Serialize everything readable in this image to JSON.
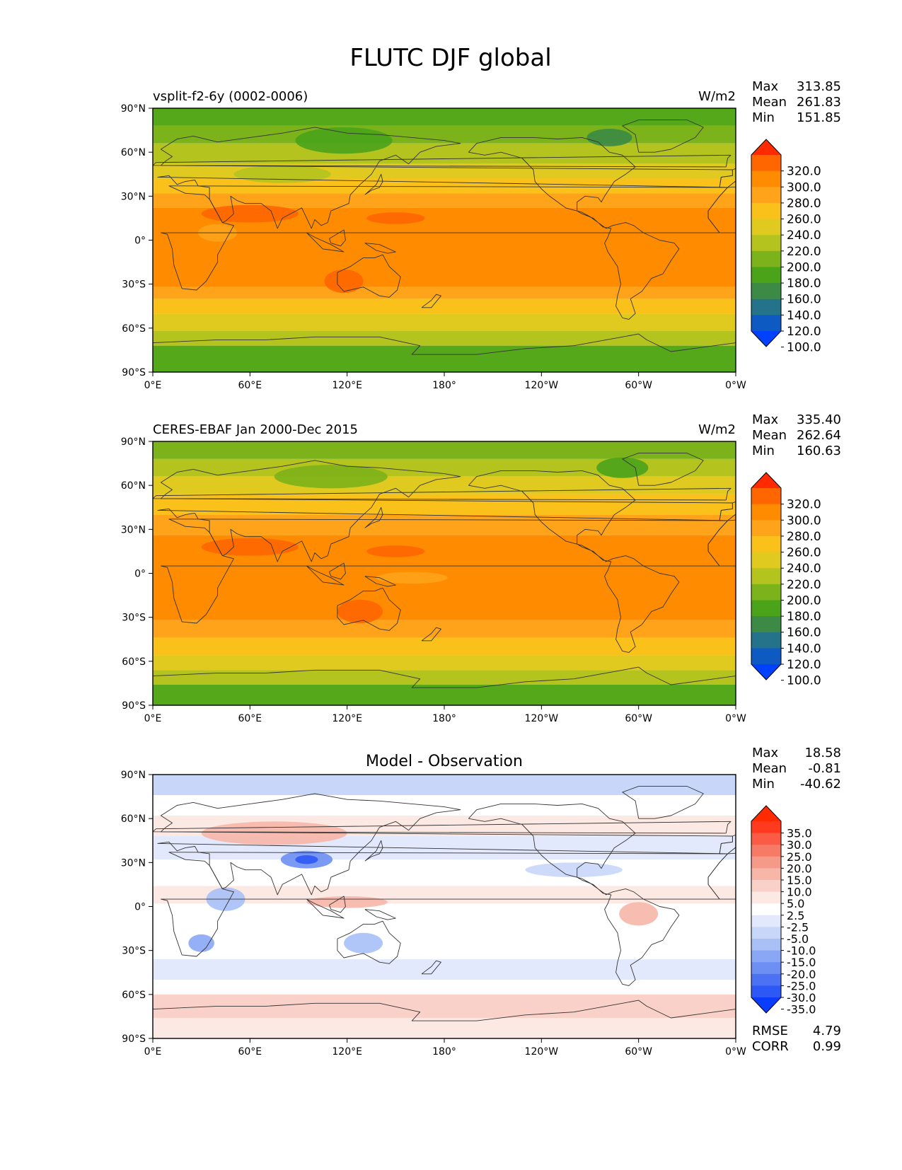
{
  "title": "FLUTC DJF global",
  "chart_data": [
    {
      "type": "heatmap",
      "name": "test",
      "left_title": "vsplit-f2-6y (0002-0006)",
      "center_title": "",
      "units": "W/m2",
      "stats": [
        {
          "label": "Max",
          "value": "313.85"
        },
        {
          "label": "Mean",
          "value": "261.83"
        },
        {
          "label": "Min",
          "value": "151.85"
        }
      ],
      "colorbar": {
        "ticks": [
          "320.0",
          "300.0",
          "280.0",
          "260.0",
          "240.0",
          "220.0",
          "200.0",
          "180.0",
          "160.0",
          "140.0",
          "120.0",
          "100.0"
        ],
        "colors": [
          "#ff2a00",
          "#ff6600",
          "#ff8c00",
          "#ffa31a",
          "#f9c11a",
          "#e0ca1f",
          "#b5c31f",
          "#7cb31a",
          "#4aa319",
          "#3c8a45",
          "#25738a",
          "#0d5ac2",
          "#0040ff"
        ]
      },
      "ylabels": [
        "90°N",
        "60°N",
        "30°N",
        "0°",
        "30°S",
        "60°S",
        "90°S"
      ],
      "xlabels": [
        "0°E",
        "60°E",
        "120°E",
        "180°",
        "120°W",
        "60°W",
        "0°W"
      ],
      "bands": [
        {
          "lat": [
            90,
            78
          ],
          "color": "#55a81a"
        },
        {
          "lat": [
            78,
            66
          ],
          "color": "#7cb31a"
        },
        {
          "lat": [
            66,
            52
          ],
          "color": "#b5c31f"
        },
        {
          "lat": [
            52,
            42
          ],
          "color": "#e0ca1f"
        },
        {
          "lat": [
            42,
            32
          ],
          "color": "#f9c11a"
        },
        {
          "lat": [
            32,
            22
          ],
          "color": "#ffa31a"
        },
        {
          "lat": [
            22,
            -32
          ],
          "color": "#ff8c00"
        },
        {
          "lat": [
            -32,
            -40
          ],
          "color": "#ffa31a"
        },
        {
          "lat": [
            -40,
            -50
          ],
          "color": "#f9c11a"
        },
        {
          "lat": [
            -50,
            -62
          ],
          "color": "#e0ca1f"
        },
        {
          "lat": [
            -62,
            -72
          ],
          "color": "#b5c31f"
        },
        {
          "lat": [
            -72,
            -90
          ],
          "color": "#55a81a"
        }
      ],
      "blobs": [
        {
          "lon": 118,
          "lat": 68,
          "rlon": 30,
          "rlat": 9,
          "color": "#4aa319"
        },
        {
          "lon": 282,
          "lat": 70,
          "rlon": 14,
          "rlat": 6,
          "color": "#3c8a45"
        },
        {
          "lon": 150,
          "lat": 15,
          "rlon": 18,
          "rlat": 4,
          "color": "#ff6600"
        },
        {
          "lon": 60,
          "lat": 18,
          "rlon": 30,
          "rlat": 6,
          "color": "#ff6600"
        },
        {
          "lon": 118,
          "lat": -28,
          "rlon": 12,
          "rlat": 8,
          "color": "#ff6600"
        },
        {
          "lon": 40,
          "lat": 5,
          "rlon": 12,
          "rlat": 6,
          "color": "#ffa31a"
        },
        {
          "lon": 80,
          "lat": 45,
          "rlon": 30,
          "rlat": 6,
          "color": "#b5c31f"
        }
      ]
    },
    {
      "type": "heatmap",
      "name": "reference",
      "left_title": "CERES-EBAF Jan 2000-Dec 2015",
      "center_title": "",
      "units": "W/m2",
      "stats": [
        {
          "label": "Max",
          "value": "335.40"
        },
        {
          "label": "Mean",
          "value": "262.64"
        },
        {
          "label": "Min",
          "value": "160.63"
        }
      ],
      "colorbar": {
        "ticks": [
          "320.0",
          "300.0",
          "280.0",
          "260.0",
          "240.0",
          "220.0",
          "200.0",
          "180.0",
          "160.0",
          "140.0",
          "120.0",
          "100.0"
        ],
        "colors": [
          "#ff2a00",
          "#ff6600",
          "#ff8c00",
          "#ffa31a",
          "#f9c11a",
          "#e0ca1f",
          "#b5c31f",
          "#7cb31a",
          "#4aa319",
          "#3c8a45",
          "#25738a",
          "#0d5ac2",
          "#0040ff"
        ]
      },
      "ylabels": [
        "90°N",
        "60°N",
        "30°N",
        "0°",
        "30°S",
        "60°S",
        "90°S"
      ],
      "xlabels": [
        "0°E",
        "60°E",
        "120°E",
        "180°",
        "120°W",
        "60°W",
        "0°W"
      ],
      "bands": [
        {
          "lat": [
            90,
            78
          ],
          "color": "#7cb31a"
        },
        {
          "lat": [
            78,
            66
          ],
          "color": "#b5c31f"
        },
        {
          "lat": [
            66,
            54
          ],
          "color": "#e0ca1f"
        },
        {
          "lat": [
            54,
            40
          ],
          "color": "#f9c11a"
        },
        {
          "lat": [
            40,
            26
          ],
          "color": "#ffa31a"
        },
        {
          "lat": [
            26,
            -32
          ],
          "color": "#ff8c00"
        },
        {
          "lat": [
            -32,
            -44
          ],
          "color": "#ffa31a"
        },
        {
          "lat": [
            -44,
            -56
          ],
          "color": "#f9c11a"
        },
        {
          "lat": [
            -56,
            -66
          ],
          "color": "#e0ca1f"
        },
        {
          "lat": [
            -66,
            -76
          ],
          "color": "#b5c31f"
        },
        {
          "lat": [
            -76,
            -90
          ],
          "color": "#55a81a"
        }
      ],
      "blobs": [
        {
          "lon": 110,
          "lat": 66,
          "rlon": 35,
          "rlat": 8,
          "color": "#7cb31a"
        },
        {
          "lon": 290,
          "lat": 72,
          "rlon": 16,
          "rlat": 7,
          "color": "#4aa319"
        },
        {
          "lon": 150,
          "lat": 15,
          "rlon": 18,
          "rlat": 4,
          "color": "#ff6600"
        },
        {
          "lon": 60,
          "lat": 18,
          "rlon": 30,
          "rlat": 6,
          "color": "#ff6600"
        },
        {
          "lon": 128,
          "lat": -26,
          "rlon": 14,
          "rlat": 8,
          "color": "#ff6600"
        },
        {
          "lon": 160,
          "lat": -3,
          "rlon": 22,
          "rlat": 4,
          "color": "#ffa31a"
        }
      ]
    },
    {
      "type": "heatmap",
      "name": "diff",
      "left_title": "",
      "center_title": "Model - Observation",
      "units": "",
      "stats": [
        {
          "label": "Max",
          "value": "18.58"
        },
        {
          "label": "Mean",
          "value": "-0.81"
        },
        {
          "label": "Min",
          "value": "-40.62"
        }
      ],
      "extra_stats": [
        {
          "label": "RMSE",
          "value": "4.79"
        },
        {
          "label": "CORR",
          "value": "0.99"
        }
      ],
      "colorbar": {
        "ticks": [
          "35.0",
          "30.0",
          "25.0",
          "20.0",
          "15.0",
          "10.0",
          "5.0",
          "2.5",
          "-2.5",
          "-5.0",
          "-10.0",
          "-15.0",
          "-20.0",
          "-25.0",
          "-30.0",
          "-35.0"
        ],
        "colors": [
          "#ff2a00",
          "#ff3a1f",
          "#fb5a44",
          "#f77a66",
          "#f59988",
          "#f7b6a8",
          "#fad1c8",
          "#fde9e4",
          "#ffffff",
          "#e2e9fc",
          "#c8d6fa",
          "#a9c0f7",
          "#8aa7f5",
          "#6d8ff3",
          "#4c72f3",
          "#2e58f5",
          "#0a3cff"
        ]
      },
      "ylabels": [
        "90°N",
        "60°N",
        "30°N",
        "0°",
        "30°S",
        "60°S",
        "90°S"
      ],
      "xlabels": [
        "0°E",
        "60°E",
        "120°E",
        "180°",
        "120°W",
        "60°W",
        "0°W"
      ],
      "bands": [
        {
          "lat": [
            90,
            76
          ],
          "color": "#c8d6fa"
        },
        {
          "lat": [
            76,
            62
          ],
          "color": "#ffffff"
        },
        {
          "lat": [
            62,
            48
          ],
          "color": "#fde9e4"
        },
        {
          "lat": [
            48,
            32
          ],
          "color": "#e2e9fc"
        },
        {
          "lat": [
            32,
            14
          ],
          "color": "#ffffff"
        },
        {
          "lat": [
            14,
            2
          ],
          "color": "#fde9e4"
        },
        {
          "lat": [
            2,
            -20
          ],
          "color": "#ffffff"
        },
        {
          "lat": [
            -20,
            -36
          ],
          "color": "#ffffff"
        },
        {
          "lat": [
            -36,
            -50
          ],
          "color": "#e2e9fc"
        },
        {
          "lat": [
            -50,
            -60
          ],
          "color": "#ffffff"
        },
        {
          "lat": [
            -60,
            -76
          ],
          "color": "#fad1c8"
        },
        {
          "lat": [
            -76,
            -90
          ],
          "color": "#fde9e4"
        }
      ],
      "blobs": [
        {
          "lon": 75,
          "lat": 50,
          "rlon": 45,
          "rlat": 8,
          "color": "#f7b6a8"
        },
        {
          "lon": 95,
          "lat": 32,
          "rlon": 16,
          "rlat": 6,
          "color": "#6d8ff3"
        },
        {
          "lon": 95,
          "lat": 32,
          "rlon": 7,
          "rlat": 3,
          "color": "#2e58f5"
        },
        {
          "lon": 45,
          "lat": 5,
          "rlon": 12,
          "rlat": 8,
          "color": "#a9c0f7"
        },
        {
          "lon": 30,
          "lat": -25,
          "rlon": 8,
          "rlat": 6,
          "color": "#8aa7f5"
        },
        {
          "lon": 130,
          "lat": -25,
          "rlon": 12,
          "rlat": 7,
          "color": "#a9c0f7"
        },
        {
          "lon": 300,
          "lat": -5,
          "rlon": 12,
          "rlat": 8,
          "color": "#f7b6a8"
        },
        {
          "lon": 120,
          "lat": 3,
          "rlon": 25,
          "rlat": 4,
          "color": "#f7b6a8"
        },
        {
          "lon": 260,
          "lat": 25,
          "rlon": 30,
          "rlat": 5,
          "color": "#c8d6fa"
        }
      ]
    }
  ]
}
